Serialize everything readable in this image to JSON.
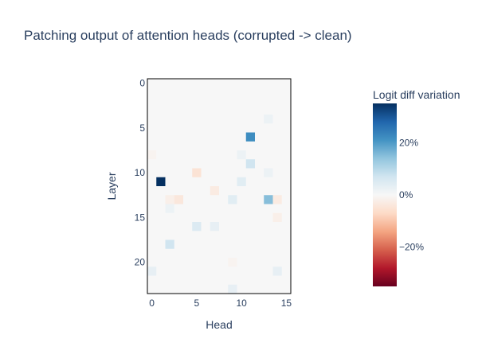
{
  "chart_data": {
    "type": "heatmap",
    "title": "Patching output of attention heads (corrupted -> clean)",
    "xlabel": "Head",
    "ylabel": "Layer",
    "x_ticks": [
      0,
      5,
      10,
      15
    ],
    "x_tick_labels": [
      "0",
      "5",
      "10",
      "15"
    ],
    "y_ticks": [
      0,
      5,
      10,
      15,
      20
    ],
    "y_tick_labels": [
      "0",
      "5",
      "10",
      "15",
      "20"
    ],
    "n_heads": 16,
    "n_layers": 24,
    "values": [
      [
        0,
        0,
        0,
        0,
        0,
        0,
        0,
        0,
        0,
        0,
        0,
        0,
        0,
        0,
        0,
        0
      ],
      [
        0,
        0,
        0,
        0,
        0,
        0,
        0,
        0,
        0,
        0,
        0,
        0,
        0,
        0,
        0,
        0
      ],
      [
        0,
        0,
        0,
        0,
        0,
        0,
        0,
        0,
        0,
        0,
        0,
        0,
        0,
        0,
        0,
        0
      ],
      [
        0,
        0,
        0,
        0,
        0,
        0,
        0,
        0,
        0,
        0,
        0,
        0,
        0,
        0,
        0,
        0
      ],
      [
        0,
        0,
        0,
        0,
        0,
        0,
        0,
        0,
        0,
        0,
        0,
        0,
        0,
        2,
        0,
        0
      ],
      [
        0,
        0,
        0,
        0,
        0,
        0,
        0,
        0,
        0,
        0,
        0,
        0,
        0,
        0,
        0,
        0
      ],
      [
        0,
        0,
        0,
        0,
        0,
        0,
        0,
        0,
        0,
        0,
        0,
        22,
        0,
        0,
        0,
        0
      ],
      [
        0,
        0,
        0,
        0,
        0,
        0,
        0,
        0,
        0,
        0,
        0,
        0,
        0,
        0,
        0,
        0
      ],
      [
        -1,
        0,
        0,
        0,
        0,
        0,
        0,
        0,
        0,
        0,
        2,
        0,
        0,
        0,
        0,
        0
      ],
      [
        0,
        0,
        0,
        0,
        0,
        0,
        0,
        0,
        0,
        0,
        0,
        7,
        0,
        0,
        0,
        0
      ],
      [
        0,
        0,
        0,
        0,
        0,
        -5,
        0,
        0,
        0,
        0,
        0,
        0,
        0,
        2,
        0,
        0
      ],
      [
        0,
        35,
        0,
        0,
        0,
        0,
        0,
        0,
        0,
        0,
        4,
        0,
        0,
        0,
        0,
        0
      ],
      [
        0,
        0,
        0,
        0,
        0,
        0,
        0,
        -3,
        0,
        0,
        0,
        0,
        0,
        0,
        0,
        0
      ],
      [
        0,
        0,
        -2,
        -4,
        0,
        0,
        0,
        0,
        0,
        4,
        0,
        0,
        0,
        15,
        -3,
        0
      ],
      [
        0,
        0,
        2,
        0,
        0,
        0,
        0,
        0,
        0,
        0,
        0,
        0,
        0,
        0,
        0,
        0
      ],
      [
        0,
        0,
        0,
        0,
        0,
        0,
        0,
        0,
        0,
        0,
        0,
        0,
        0,
        0,
        -2,
        0
      ],
      [
        0,
        0,
        0,
        0,
        0,
        5,
        0,
        3,
        0,
        0,
        0,
        0,
        0,
        0,
        0,
        0
      ],
      [
        0,
        0,
        0,
        0,
        0,
        0,
        0,
        0,
        0,
        0,
        0,
        0,
        0,
        0,
        0,
        0
      ],
      [
        0,
        0,
        7,
        0,
        0,
        0,
        0,
        0,
        0,
        0,
        0,
        0,
        0,
        0,
        0,
        0
      ],
      [
        0,
        0,
        0,
        0,
        0,
        0,
        0,
        0,
        0,
        0,
        0,
        0,
        0,
        0,
        0,
        0
      ],
      [
        0,
        0,
        0,
        0,
        0,
        0,
        0,
        0,
        0,
        -1,
        0,
        0,
        0,
        0,
        0,
        0
      ],
      [
        3,
        0,
        0,
        0,
        0,
        0,
        0,
        0,
        0,
        0,
        0,
        0,
        0,
        0,
        3,
        0
      ],
      [
        0,
        0,
        0,
        0,
        0,
        0,
        0,
        0,
        0,
        0,
        0,
        0,
        0,
        0,
        0,
        0
      ],
      [
        0,
        0,
        0,
        0,
        0,
        0,
        0,
        0,
        0,
        3,
        0,
        0,
        0,
        0,
        0,
        0
      ]
    ],
    "colorscale": "RdBu",
    "colorbar": {
      "title": "Logit diff variation",
      "range": [
        -35,
        35
      ],
      "ticks": [
        20,
        0,
        -20
      ],
      "tick_labels": [
        "20%",
        "0%",
        "−20%"
      ]
    },
    "grid": false
  }
}
